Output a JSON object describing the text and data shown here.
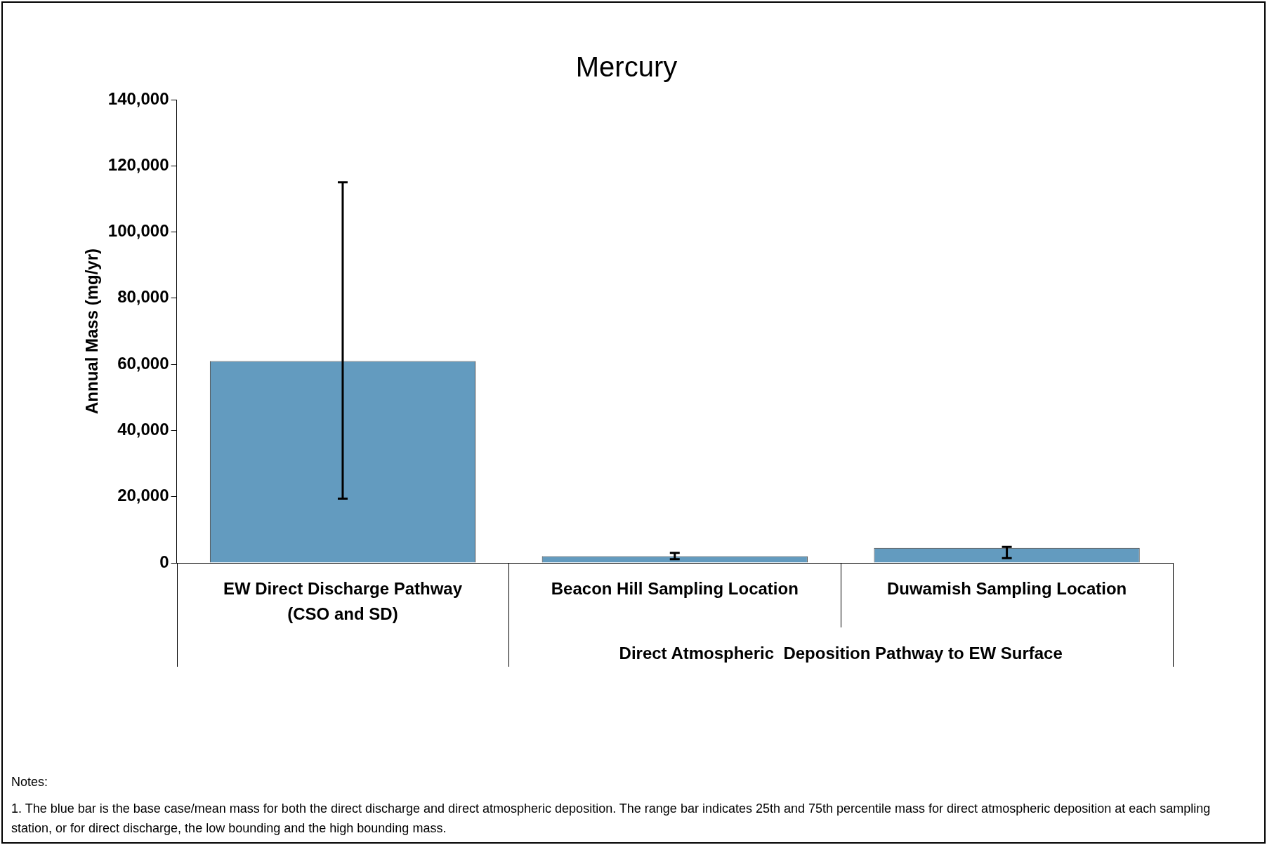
{
  "chart_data": {
    "type": "bar",
    "title": "Mercury",
    "ylabel": "Annual Mass (mg/yr)",
    "categories": [
      "EW Direct Discharge Pathway\n(CSO and SD)",
      "Beacon Hill Sampling Location",
      "Duwamish Sampling Location"
    ],
    "values": [
      61000,
      2000,
      4500
    ],
    "color": "#639bbf",
    "errors": [
      [
        19400,
        115000
      ],
      [
        1100,
        3000
      ],
      [
        1450,
        4800
      ]
    ],
    "ylim": [
      0,
      140000
    ],
    "yticks": [
      {
        "value": 0,
        "label": "0"
      },
      {
        "value": 20000,
        "label": "20,000"
      },
      {
        "value": 40000,
        "label": "40,000"
      },
      {
        "value": 60000,
        "label": "60,000"
      },
      {
        "value": 80000,
        "label": "80,000"
      },
      {
        "value": 100000,
        "label": "100,000"
      },
      {
        "value": 120000,
        "label": "120,000"
      },
      {
        "value": 140000,
        "label": "140,000"
      }
    ],
    "grid": false,
    "legend": false,
    "annotations": [
      "Direct Atmospheric  Deposition Pathway to EW Surface",
      "Notes:",
      "1. The blue bar is the base case/mean mass for both the direct discharge and direct atmospheric deposition.  The range bar indicates 25th and 75th percentile mass for direct atmospheric deposition at each sampling station, or for direct discharge, the low bounding and the high bounding mass."
    ]
  }
}
